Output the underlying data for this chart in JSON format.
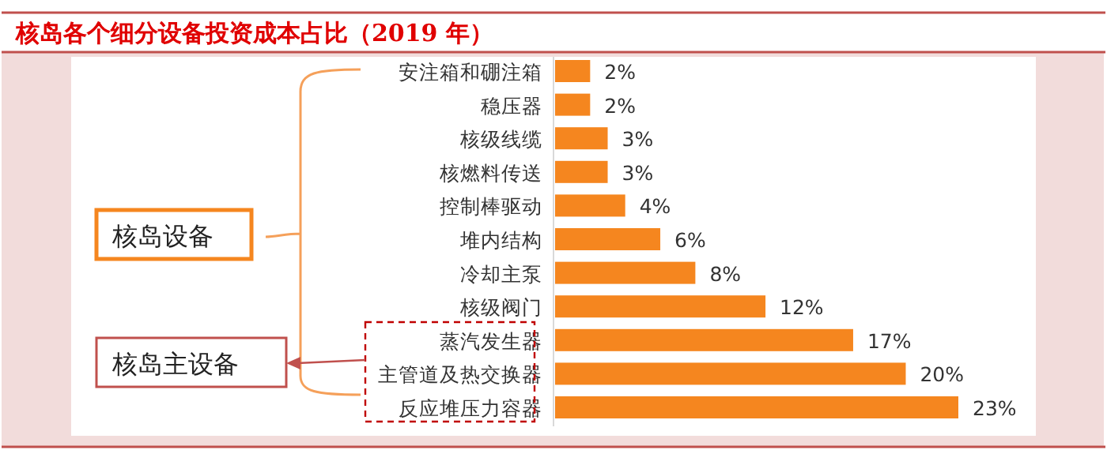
{
  "chart_data": {
    "type": "bar",
    "orientation": "horizontal",
    "title": "核岛各个细分设备投资成本占比（2019 年）",
    "categories": [
      "安注箱和硼注箱",
      "稳压器",
      "核级线缆",
      "核燃料传送",
      "控制棒驱动",
      "堆内结构",
      "冷却主泵",
      "核级阀门",
      "蒸汽发生器",
      "主管道及热交换器",
      "反应堆压力容器"
    ],
    "values": [
      2,
      2,
      3,
      3,
      4,
      6,
      8,
      12,
      17,
      20,
      23
    ],
    "value_labels": [
      "2%",
      "2%",
      "3%",
      "3%",
      "4%",
      "6%",
      "8%",
      "12%",
      "17%",
      "20%",
      "23%"
    ],
    "color": "#f5861f",
    "annotations": [
      "核岛设备",
      "核岛主设备"
    ]
  }
}
